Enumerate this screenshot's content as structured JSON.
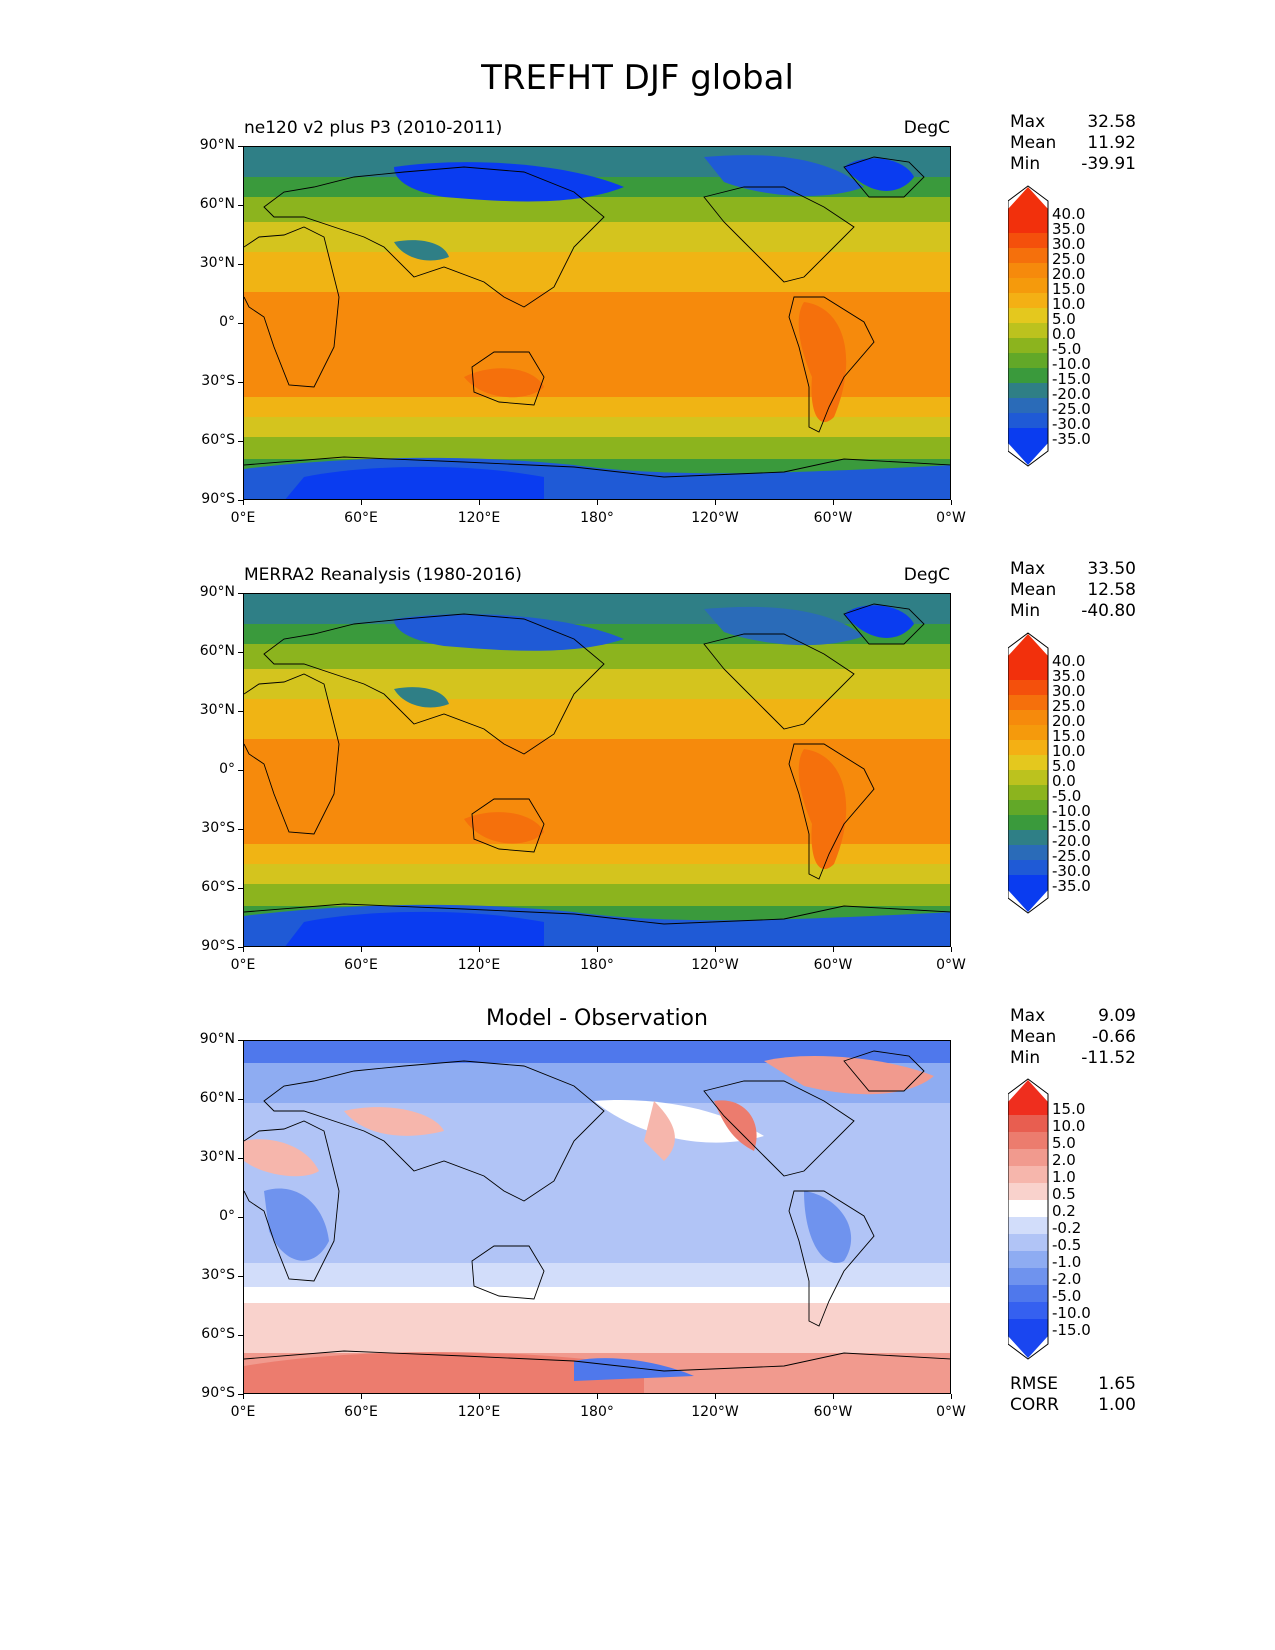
{
  "figure": {
    "title": "TREFHT DJF global"
  },
  "panels": [
    {
      "left_title": "ne120 v2 plus P3 (2010-2011)",
      "right_title": "DegC",
      "center_title": "",
      "stats": [
        {
          "label": "Max",
          "value": "32.58"
        },
        {
          "label": "Mean",
          "value": "11.92"
        },
        {
          "label": "Min",
          "value": "-39.91"
        }
      ],
      "colorbar": [
        "40.0",
        "35.0",
        "30.0",
        "25.0",
        "20.0",
        "15.0",
        "10.0",
        "5.0",
        "0.0",
        "-5.0",
        "-10.0",
        "-15.0",
        "-20.0",
        "-25.0",
        "-30.0",
        "-35.0"
      ],
      "extra_stats": []
    },
    {
      "left_title": "MERRA2 Reanalysis (1980-2016)",
      "right_title": "DegC",
      "center_title": "",
      "stats": [
        {
          "label": "Max",
          "value": "33.50"
        },
        {
          "label": "Mean",
          "value": "12.58"
        },
        {
          "label": "Min",
          "value": "-40.80"
        }
      ],
      "colorbar": [
        "40.0",
        "35.0",
        "30.0",
        "25.0",
        "20.0",
        "15.0",
        "10.0",
        "5.0",
        "0.0",
        "-5.0",
        "-10.0",
        "-15.0",
        "-20.0",
        "-25.0",
        "-30.0",
        "-35.0"
      ],
      "extra_stats": []
    },
    {
      "left_title": "",
      "right_title": "",
      "center_title": "Model - Observation",
      "stats": [
        {
          "label": "Max",
          "value": "9.09"
        },
        {
          "label": "Mean",
          "value": "-0.66"
        },
        {
          "label": "Min",
          "value": "-11.52"
        }
      ],
      "colorbar": [
        "15.0",
        "10.0",
        "5.0",
        "2.0",
        "1.0",
        "0.5",
        "0.2",
        "-0.2",
        "-0.5",
        "-1.0",
        "-2.0",
        "-5.0",
        "-10.0",
        "-15.0"
      ],
      "extra_stats": [
        {
          "label": "RMSE",
          "value": "1.65"
        },
        {
          "label": "CORR",
          "value": "1.00"
        }
      ]
    }
  ],
  "axes": {
    "lat_ticks": [
      "90°N",
      "60°N",
      "30°N",
      "0°",
      "30°S",
      "60°S",
      "90°S"
    ],
    "lon_ticks": [
      "0°E",
      "60°E",
      "120°E",
      "180°",
      "120°W",
      "60°W",
      "0°W"
    ]
  },
  "colors": {
    "temp_scale": [
      "#0a3cf0",
      "#1f5ad6",
      "#2a6bb8",
      "#2f7f86",
      "#3a9a3c",
      "#62a828",
      "#8cb41e",
      "#bcc21e",
      "#e4c81e",
      "#f4b014",
      "#f59a0c",
      "#f68a0c",
      "#f5700c",
      "#f4500c",
      "#f2300c"
    ],
    "diff_scale": [
      "#1a46f0",
      "#3560f0",
      "#4f78ec",
      "#6f93ee",
      "#8eacf2",
      "#b1c4f6",
      "#d2ddfa",
      "#ffffff",
      "#f9d2cc",
      "#f6b6ac",
      "#f19a8e",
      "#ec7c6e",
      "#e85e50",
      "#e84030",
      "#ef2e1e"
    ]
  }
}
